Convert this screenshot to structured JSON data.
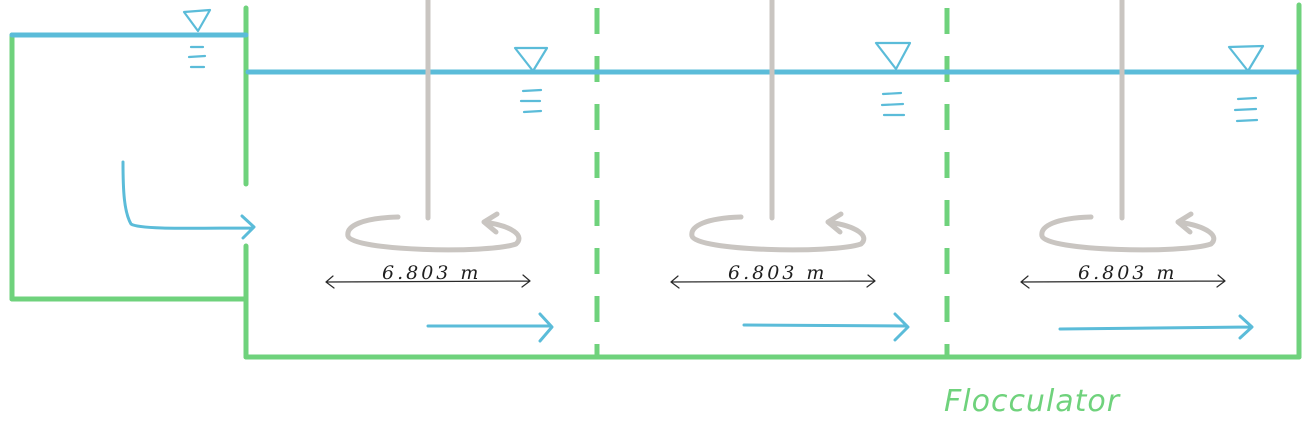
{
  "diagram": {
    "caption": "Flocculator",
    "compartments": [
      {
        "impeller_diameter_label": "6.803 m"
      },
      {
        "impeller_diameter_label": "6.803 m"
      },
      {
        "impeller_diameter_label": "6.803 m"
      }
    ],
    "colors": {
      "walls": "#6fd27c",
      "water": "#5bbcd9",
      "impeller": "#c9c5c1",
      "dimension": "#2a2a2a"
    },
    "icons": {
      "water_level": "water-level-triangle-icon",
      "flow": "flow-arrow-icon",
      "rotation": "rotation-arrow-icon"
    }
  }
}
